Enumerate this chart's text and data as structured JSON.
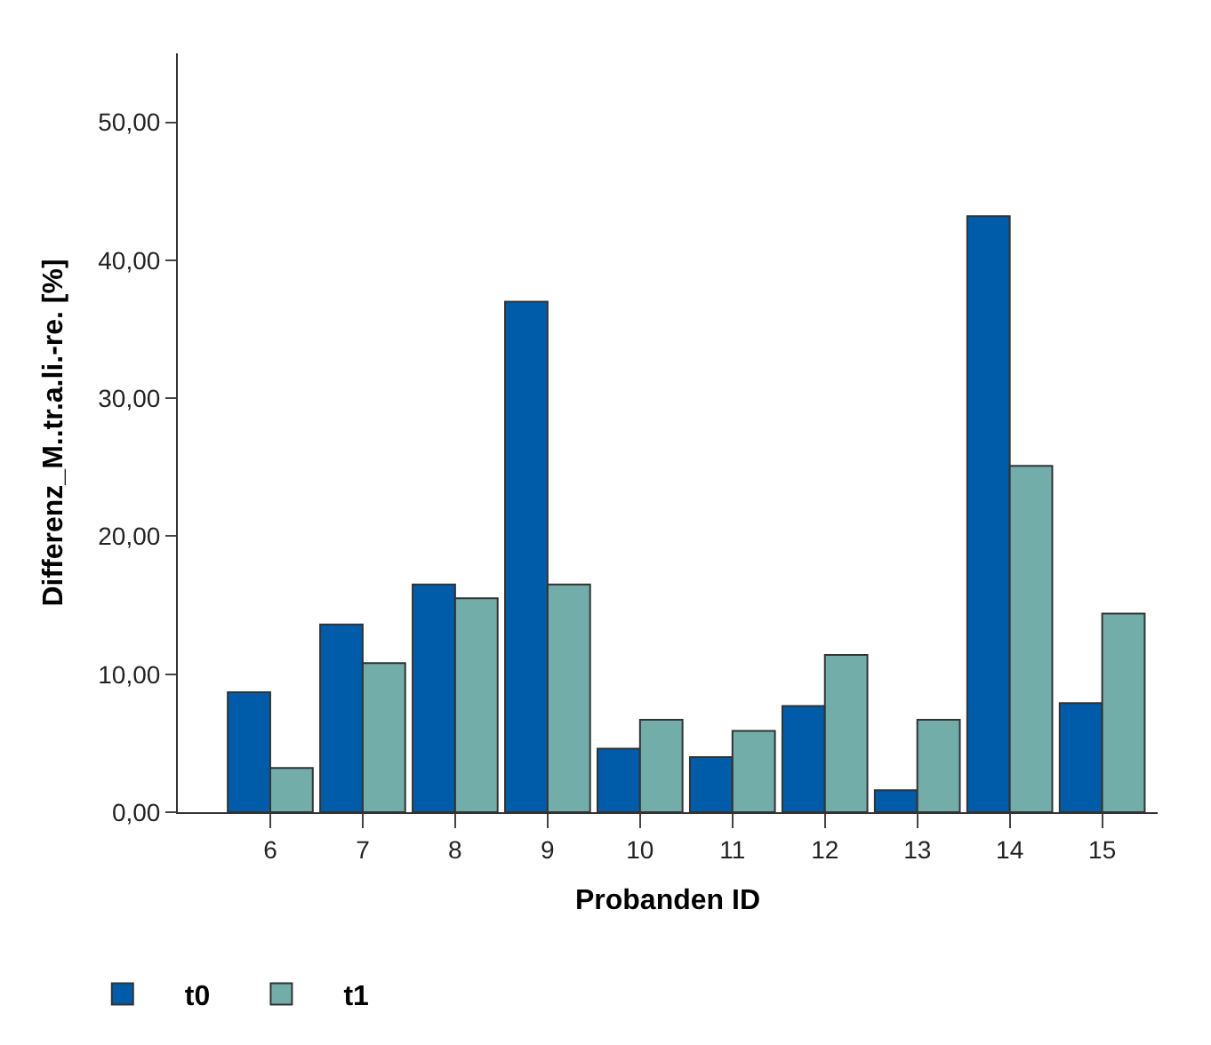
{
  "chart_data": {
    "type": "bar",
    "xlabel": "Probanden ID",
    "ylabel": "Differenz_M..tr.a.li.-re. [%]",
    "categories": [
      "6",
      "7",
      "8",
      "9",
      "10",
      "11",
      "12",
      "13",
      "14",
      "15"
    ],
    "series": [
      {
        "name": "t0",
        "color": "#005ca8",
        "values": [
          8.7,
          13.6,
          16.5,
          37.0,
          4.6,
          4.0,
          7.7,
          1.6,
          43.2,
          7.9
        ]
      },
      {
        "name": "t1",
        "color": "#73ada9",
        "values": [
          3.2,
          10.8,
          15.5,
          16.5,
          6.7,
          5.9,
          11.4,
          6.7,
          25.1,
          14.4
        ]
      }
    ],
    "ylim": [
      0,
      55
    ],
    "yticks": [
      {
        "value": 0,
        "label": "0,00"
      },
      {
        "value": 10,
        "label": "10,00"
      },
      {
        "value": 20,
        "label": "20,00"
      },
      {
        "value": 30,
        "label": "30,00"
      },
      {
        "value": 40,
        "label": "40,00"
      },
      {
        "value": 50,
        "label": "50,00"
      }
    ],
    "legend": "bottom"
  }
}
